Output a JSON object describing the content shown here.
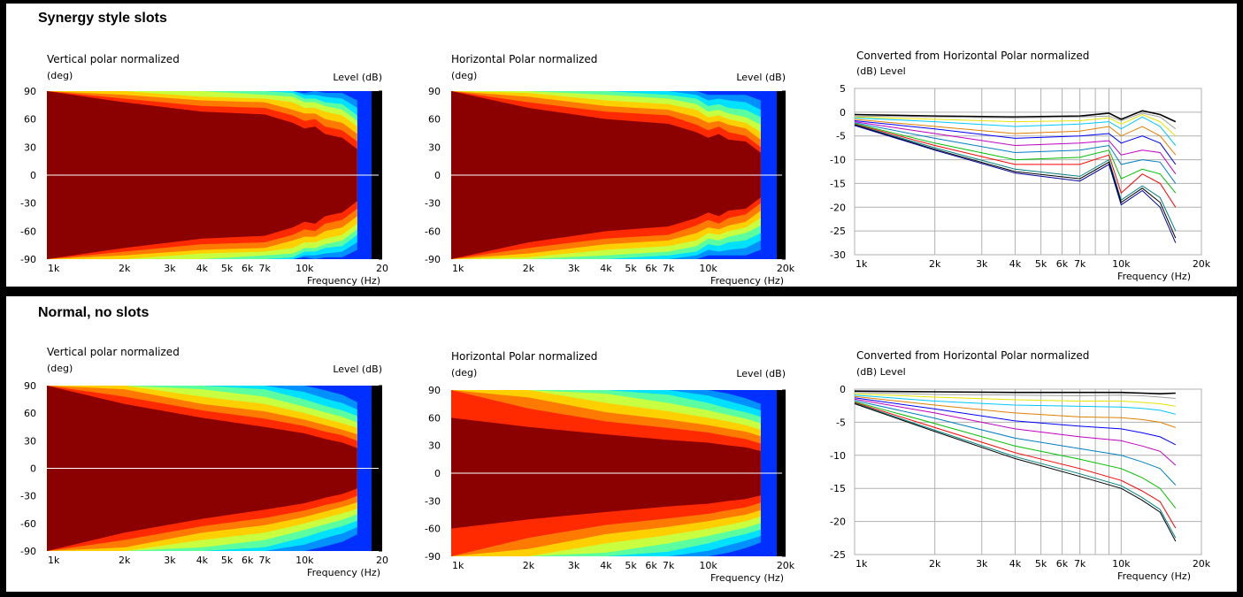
{
  "sections": [
    {
      "title": "Synergy style slots"
    },
    {
      "title": "Normal, no slots"
    }
  ],
  "labels": {
    "vertical_title": "Vertical polar normalized",
    "horizontal_title": "Horizontal Polar normalized",
    "converted_title": "Converted from Horizontal Polar normalized",
    "deg_unit": "(deg)",
    "level_db": "Level  (dB)",
    "db_level": "(dB)  Level",
    "frequency_hz": "Frequency  (Hz)"
  },
  "colors": {
    "contour_levels": [
      "#8b0000",
      "#ff2a00",
      "#ff7a00",
      "#ffd000",
      "#c8ff40",
      "#5cffa0",
      "#00e0ff",
      "#0090ff",
      "#0030ff",
      "#000090",
      "#000000"
    ],
    "line_series": [
      "#000000",
      "#a0a0a0",
      "#e6e600",
      "#00c8ff",
      "#e08000",
      "#0000ff",
      "#c000c0",
      "#0080c0",
      "#00c000",
      "#ff0000",
      "#008080",
      "#000000",
      "#0000a0"
    ]
  },
  "chart_data": [
    {
      "type": "heatmap",
      "title": "Vertical polar normalized",
      "section": "Synergy style slots",
      "xlabel": "Frequency  (Hz)",
      "ylabel": "(deg)",
      "zlabel": "Level  (dB)",
      "x_scale": "log",
      "xlim": [
        1000,
        20000
      ],
      "ylim": [
        -90,
        90
      ],
      "x_ticks": [
        "1k",
        "2k",
        "3k",
        "4k",
        "5k",
        "6k",
        "7k",
        "10k",
        "20"
      ],
      "y_ticks": [
        "90",
        "60",
        "30",
        "0",
        "-30",
        "-60",
        "-90"
      ],
      "freq_hz": [
        1000,
        2000,
        4000,
        7000,
        9000,
        10000,
        11000,
        12000,
        14000,
        16000
      ],
      "beamwidth_deg_per_contour_level": [
        [
          90,
          78,
          68,
          65,
          56,
          50,
          52,
          44,
          40,
          28
        ],
        [
          90,
          82,
          74,
          72,
          64,
          58,
          60,
          52,
          48,
          36
        ],
        [
          90,
          86,
          80,
          78,
          70,
          66,
          66,
          60,
          56,
          44
        ],
        [
          90,
          90,
          84,
          82,
          78,
          72,
          72,
          68,
          64,
          52
        ],
        [
          90,
          90,
          90,
          86,
          84,
          78,
          78,
          74,
          70,
          58
        ],
        [
          90,
          90,
          90,
          90,
          88,
          82,
          82,
          78,
          76,
          64
        ],
        [
          90,
          90,
          90,
          90,
          90,
          86,
          86,
          84,
          82,
          72
        ],
        [
          90,
          90,
          90,
          90,
          90,
          88,
          90,
          88,
          88,
          80
        ],
        [
          90,
          90,
          90,
          90,
          90,
          90,
          90,
          90,
          90,
          86
        ]
      ]
    },
    {
      "type": "heatmap",
      "title": "Horizontal Polar normalized",
      "section": "Synergy style slots",
      "xlabel": "Frequency  (Hz)",
      "ylabel": "(deg)",
      "zlabel": "Level  (dB)",
      "x_scale": "log",
      "xlim": [
        1000,
        20000
      ],
      "ylim": [
        -90,
        90
      ],
      "x_ticks": [
        "1k",
        "2k",
        "3k",
        "4k",
        "5k",
        "6k",
        "7k",
        "10k",
        "20k"
      ],
      "y_ticks": [
        "90",
        "60",
        "30",
        "0",
        "-30",
        "-60",
        "-90"
      ],
      "freq_hz": [
        1000,
        2000,
        4000,
        7000,
        9000,
        10000,
        11000,
        12000,
        14000,
        16000
      ],
      "beamwidth_deg_per_contour_level": [
        [
          90,
          72,
          60,
          55,
          46,
          40,
          44,
          38,
          36,
          24
        ],
        [
          90,
          78,
          68,
          64,
          54,
          48,
          52,
          46,
          42,
          30
        ],
        [
          90,
          84,
          74,
          70,
          62,
          56,
          58,
          54,
          50,
          38
        ],
        [
          90,
          88,
          80,
          76,
          70,
          62,
          64,
          60,
          56,
          46
        ],
        [
          90,
          90,
          86,
          82,
          76,
          68,
          70,
          66,
          62,
          54
        ],
        [
          90,
          90,
          90,
          86,
          82,
          74,
          76,
          72,
          70,
          62
        ],
        [
          90,
          90,
          90,
          90,
          86,
          80,
          82,
          80,
          78,
          70
        ],
        [
          90,
          90,
          90,
          90,
          90,
          86,
          86,
          86,
          86,
          80
        ],
        [
          90,
          90,
          90,
          90,
          90,
          90,
          90,
          90,
          90,
          88
        ]
      ]
    },
    {
      "type": "line",
      "title": "Converted from Horizontal Polar normalized",
      "section": "Synergy style slots",
      "xlabel": "Frequency  (Hz)",
      "ylabel": "(dB)  Level",
      "x_scale": "log",
      "xlim": [
        1000,
        20000
      ],
      "ylim": [
        -30,
        5
      ],
      "grid": true,
      "x_ticks": [
        "1k",
        "2k",
        "3k",
        "4k",
        "5k",
        "6k",
        "7k",
        "10k",
        "20k"
      ],
      "y_ticks": [
        "5",
        "0",
        "-5",
        "-10",
        "-15",
        "-20",
        "-25",
        "-30"
      ],
      "x": [
        1000,
        2000,
        4000,
        7000,
        9000,
        10000,
        12000,
        14000,
        16000
      ],
      "series": [
        {
          "values": [
            -0.5,
            -0.8,
            -1.0,
            -0.8,
            -0.2,
            -1.5,
            0.3,
            -0.5,
            -2.0
          ]
        },
        {
          "values": [
            -0.8,
            -1.0,
            -1.2,
            -1.0,
            -0.8,
            -1.8,
            -0.2,
            -1.0,
            -3.5
          ]
        },
        {
          "values": [
            -1.0,
            -1.5,
            -2.0,
            -1.8,
            -1.2,
            -2.5,
            -0.5,
            -2.0,
            -5.0
          ]
        },
        {
          "values": [
            -1.2,
            -2.0,
            -3.0,
            -2.5,
            -2.0,
            -3.5,
            -1.0,
            -3.0,
            -7.0
          ]
        },
        {
          "values": [
            -1.5,
            -3.0,
            -4.5,
            -4.0,
            -3.0,
            -5.0,
            -3.0,
            -5.0,
            -9.0
          ]
        },
        {
          "values": [
            -1.8,
            -3.5,
            -5.5,
            -5.0,
            -4.5,
            -6.5,
            -5.0,
            -6.5,
            -11.0
          ]
        },
        {
          "values": [
            -2.0,
            -4.5,
            -7.0,
            -6.5,
            -6.0,
            -9.0,
            -8.0,
            -8.5,
            -13.0
          ]
        },
        {
          "values": [
            -2.2,
            -5.5,
            -8.5,
            -8.0,
            -7.0,
            -11.0,
            -10.0,
            -10.5,
            -15.0
          ]
        },
        {
          "values": [
            -2.4,
            -6.5,
            -10.0,
            -9.5,
            -8.0,
            -14.0,
            -12.0,
            -13.0,
            -17.0
          ]
        },
        {
          "values": [
            -2.5,
            -7.0,
            -11.0,
            -11.0,
            -9.0,
            -17.0,
            -13.0,
            -15.0,
            -20.0
          ]
        },
        {
          "values": [
            -2.6,
            -7.5,
            -12.0,
            -13.5,
            -10.0,
            -18.5,
            -15.5,
            -18.0,
            -25.0
          ]
        },
        {
          "values": [
            -2.7,
            -7.8,
            -12.5,
            -14.0,
            -10.5,
            -19.0,
            -16.0,
            -19.0,
            -26.5
          ]
        },
        {
          "values": [
            -2.8,
            -8.0,
            -12.8,
            -14.5,
            -11.0,
            -19.5,
            -16.5,
            -20.0,
            -27.5
          ]
        }
      ]
    },
    {
      "type": "heatmap",
      "title": "Vertical polar normalized",
      "section": "Normal, no slots",
      "xlabel": "Frequency  (Hz)",
      "ylabel": "(deg)",
      "zlabel": "Level  (dB)",
      "x_scale": "log",
      "xlim": [
        1000,
        20000
      ],
      "ylim": [
        -90,
        90
      ],
      "x_ticks": [
        "1k",
        "2k",
        "3k",
        "4k",
        "5k",
        "6k",
        "7k",
        "10k",
        "20"
      ],
      "y_ticks": [
        "90",
        "60",
        "30",
        "0",
        "-30",
        "-60",
        "-90"
      ],
      "freq_hz": [
        1000,
        2000,
        4000,
        7000,
        10000,
        12000,
        14000,
        16000
      ],
      "beamwidth_deg_per_contour_level": [
        [
          90,
          70,
          55,
          45,
          38,
          32,
          28,
          22
        ],
        [
          90,
          78,
          63,
          54,
          46,
          40,
          36,
          30
        ],
        [
          90,
          86,
          70,
          62,
          53,
          47,
          42,
          37
        ],
        [
          90,
          90,
          78,
          70,
          60,
          54,
          49,
          44
        ],
        [
          90,
          90,
          86,
          78,
          67,
          61,
          56,
          50
        ],
        [
          90,
          90,
          90,
          86,
          75,
          68,
          63,
          57
        ],
        [
          90,
          90,
          90,
          90,
          83,
          76,
          71,
          64
        ],
        [
          90,
          90,
          90,
          90,
          90,
          85,
          80,
          72
        ],
        [
          90,
          90,
          90,
          90,
          90,
          90,
          88,
          82
        ]
      ]
    },
    {
      "type": "heatmap",
      "title": "Horizontal Polar normalized",
      "section": "Normal, no slots",
      "xlabel": "Frequency  (Hz)",
      "ylabel": "(deg)",
      "zlabel": "Level  (dB)",
      "x_scale": "log",
      "xlim": [
        1000,
        20000
      ],
      "ylim": [
        -90,
        90
      ],
      "x_ticks": [
        "1k",
        "2k",
        "3k",
        "4k",
        "5k",
        "6k",
        "7k",
        "10k",
        "20k"
      ],
      "y_ticks": [
        "90",
        "60",
        "30",
        "0",
        "-30",
        "-60",
        "-90"
      ],
      "freq_hz": [
        1000,
        2000,
        4000,
        7000,
        10000,
        12000,
        14000,
        16000
      ],
      "beamwidth_deg_per_contour_level": [
        [
          60,
          50,
          42,
          36,
          33,
          30,
          28,
          24
        ],
        [
          90,
          70,
          56,
          49,
          44,
          40,
          37,
          32
        ],
        [
          90,
          82,
          66,
          58,
          52,
          48,
          45,
          40
        ],
        [
          90,
          90,
          76,
          67,
          60,
          56,
          52,
          47
        ],
        [
          90,
          90,
          86,
          76,
          68,
          63,
          59,
          54
        ],
        [
          90,
          90,
          90,
          85,
          76,
          70,
          66,
          61
        ],
        [
          90,
          90,
          90,
          90,
          84,
          78,
          73,
          68
        ],
        [
          90,
          90,
          90,
          90,
          90,
          86,
          81,
          75
        ],
        [
          90,
          90,
          90,
          90,
          90,
          90,
          88,
          82
        ]
      ]
    },
    {
      "type": "line",
      "title": "Converted from Horizontal Polar normalized",
      "section": "Normal, no slots",
      "xlabel": "Frequency  (Hz)",
      "ylabel": "(dB)  Level",
      "x_scale": "log",
      "xlim": [
        1000,
        20000
      ],
      "ylim": [
        -25,
        0
      ],
      "grid": true,
      "x_ticks": [
        "1k",
        "2k",
        "3k",
        "4k",
        "5k",
        "6k",
        "7k",
        "10k",
        "20k"
      ],
      "y_ticks": [
        "0",
        "-5",
        "-10",
        "-15",
        "-20",
        "-25"
      ],
      "x": [
        1000,
        2000,
        4000,
        7000,
        10000,
        12000,
        14000,
        16000
      ],
      "series": [
        {
          "values": [
            -0.3,
            -0.4,
            -0.5,
            -0.5,
            -0.5,
            -0.6,
            -0.7,
            -0.6
          ]
        },
        {
          "values": [
            -0.5,
            -0.8,
            -0.9,
            -1.0,
            -0.9,
            -1.0,
            -1.2,
            -1.4
          ]
        },
        {
          "values": [
            -0.7,
            -1.2,
            -1.6,
            -1.8,
            -1.8,
            -2.0,
            -2.2,
            -2.6
          ]
        },
        {
          "values": [
            -0.9,
            -1.8,
            -2.4,
            -2.6,
            -2.7,
            -2.9,
            -3.2,
            -3.8
          ]
        },
        {
          "values": [
            -1.1,
            -2.4,
            -3.6,
            -4.2,
            -4.3,
            -4.6,
            -5.0,
            -5.8
          ]
        },
        {
          "values": [
            -1.3,
            -3.0,
            -4.8,
            -5.6,
            -6.0,
            -6.6,
            -7.2,
            -8.4
          ]
        },
        {
          "values": [
            -1.5,
            -3.6,
            -6.0,
            -7.2,
            -7.8,
            -8.6,
            -9.4,
            -11.5
          ]
        },
        {
          "values": [
            -1.7,
            -4.4,
            -7.4,
            -9.0,
            -10.0,
            -11.0,
            -12.0,
            -14.5
          ]
        },
        {
          "values": [
            -1.9,
            -5.2,
            -8.6,
            -10.6,
            -12.0,
            -13.4,
            -15.0,
            -18.0
          ]
        },
        {
          "values": [
            -2.0,
            -5.8,
            -9.6,
            -12.0,
            -13.8,
            -15.4,
            -17.0,
            -21.0
          ]
        },
        {
          "values": [
            -2.1,
            -6.2,
            -10.2,
            -12.8,
            -14.6,
            -16.4,
            -18.2,
            -22.5
          ]
        },
        {
          "values": [
            -2.2,
            -6.4,
            -10.5,
            -13.2,
            -15.0,
            -16.8,
            -18.6,
            -23.0
          ]
        }
      ]
    }
  ]
}
